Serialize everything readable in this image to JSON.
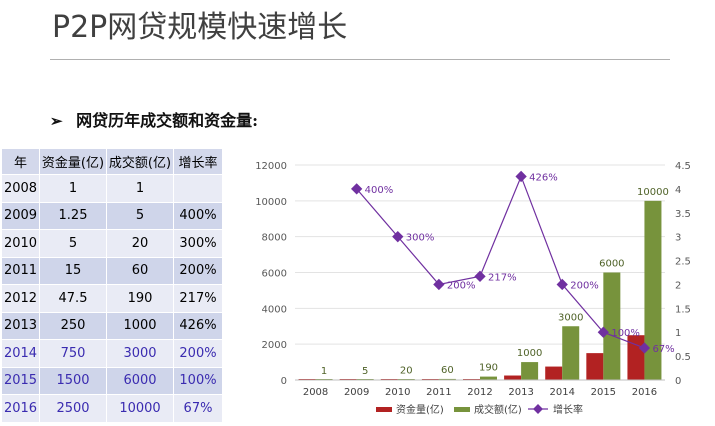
{
  "page": {
    "title": "P2P网贷规模快速增长",
    "subtitle_arrow": "➢",
    "subtitle": "网贷历年成交额和资金量:"
  },
  "table": {
    "headers": [
      "年",
      "资金量(亿)",
      "成交额(亿)",
      "增长率"
    ],
    "rows": [
      [
        "2008",
        "1",
        "1",
        ""
      ],
      [
        "2009",
        "1.25",
        "5",
        "400%"
      ],
      [
        "2010",
        "5",
        "20",
        "300%"
      ],
      [
        "2011",
        "15",
        "60",
        "200%"
      ],
      [
        "2012",
        "47.5",
        "190",
        "217%"
      ],
      [
        "2013",
        "250",
        "1000",
        "426%"
      ],
      [
        "2014",
        "750",
        "3000",
        "200%"
      ],
      [
        "2015",
        "1500",
        "6000",
        "100%"
      ],
      [
        "2016",
        "2500",
        "10000",
        "67%"
      ]
    ],
    "highlight_text_color": "#3a2bb0"
  },
  "chart_data": {
    "type": "bar",
    "categories": [
      "2008",
      "2009",
      "2010",
      "2011",
      "2012",
      "2013",
      "2014",
      "2015",
      "2016"
    ],
    "series": [
      {
        "name": "资金量(亿)",
        "kind": "bar",
        "axis": "left",
        "color": "#b22222",
        "values": [
          1,
          1.25,
          5,
          15,
          47.5,
          250,
          750,
          1500,
          2500
        ]
      },
      {
        "name": "成交额(亿)",
        "kind": "bar",
        "axis": "left",
        "color": "#77933c",
        "values": [
          1,
          5,
          20,
          60,
          190,
          1000,
          3000,
          6000,
          10000
        ],
        "data_labels": [
          "1",
          "5",
          "20",
          "60",
          "190",
          "1000",
          "3000",
          "6000",
          "10000"
        ]
      },
      {
        "name": "增长率",
        "kind": "line",
        "axis": "right",
        "color": "#7030a0",
        "values": [
          null,
          4.0,
          3.0,
          2.0,
          2.17,
          4.26,
          2.0,
          1.0,
          0.67
        ],
        "data_labels": [
          "",
          "400%",
          "300%",
          "200%",
          "217%",
          "426%",
          "200%",
          "100%",
          "67%"
        ]
      }
    ],
    "y_left": {
      "min": 0,
      "max": 12000,
      "ticks": [
        "0",
        "2000",
        "4000",
        "6000",
        "8000",
        "10000",
        "12000"
      ]
    },
    "y_right": {
      "min": 0,
      "max": 4.5,
      "ticks": [
        "0",
        "0.5",
        "1",
        "1.5",
        "2",
        "2.5",
        "3",
        "3.5",
        "4",
        "4.5"
      ]
    },
    "grid": "horizontal",
    "legend_position": "bottom",
    "legend": [
      "资金量(亿)",
      "成交额(亿)",
      "增长率"
    ]
  }
}
